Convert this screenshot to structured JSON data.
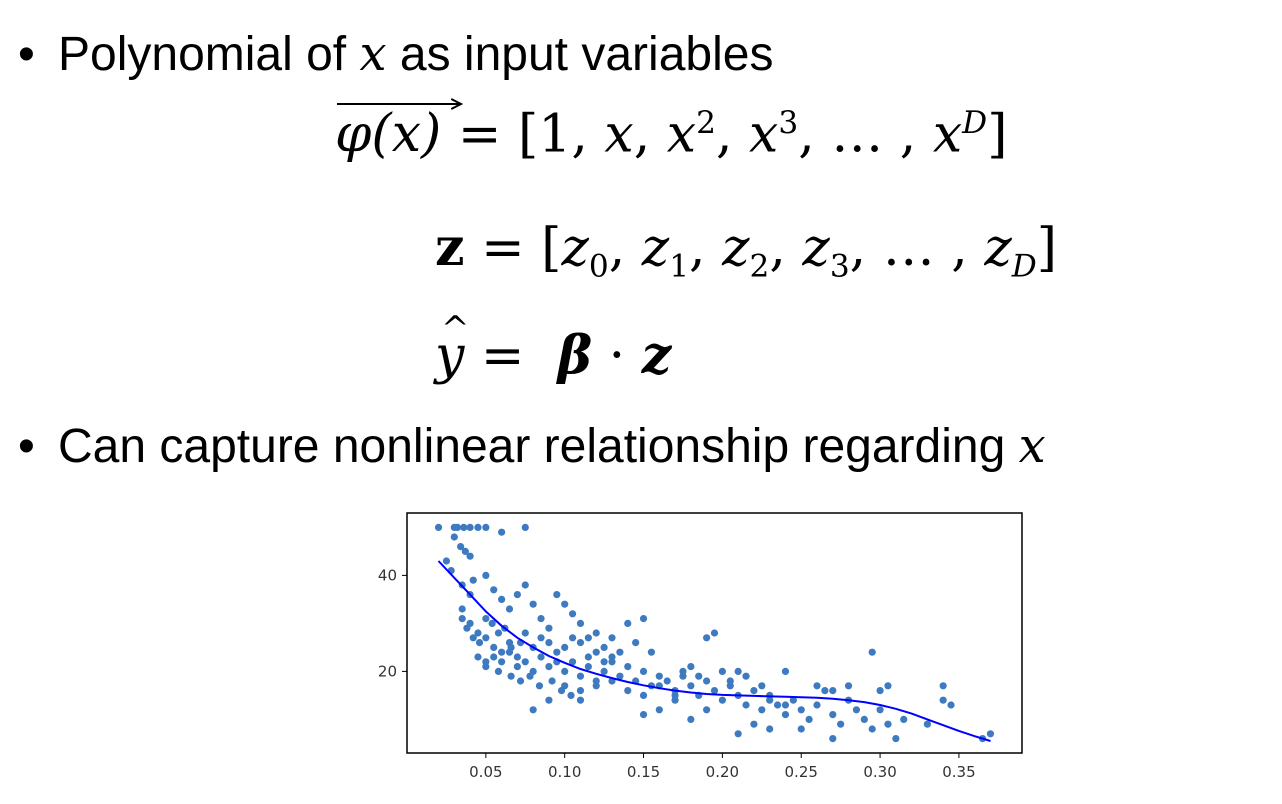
{
  "bullets": [
    {
      "text": "Polynomial of ",
      "var": "x",
      "tail": " as input variables"
    },
    {
      "text": "Can capture nonlinear relationship regarding ",
      "var": "x",
      "tail": ""
    }
  ],
  "bullet_symbol": "•",
  "equations": {
    "phi": {
      "lhs": "φ(x)",
      "equals": "=",
      "rhs_open": "[1, ",
      "x1": "x",
      "sep": ", ",
      "x2": "x",
      "p2": "2",
      "x3": "x",
      "p3": "3",
      "ell": ", … , ",
      "xd": "x",
      "pd": "D",
      "rhs_close": "]"
    },
    "z": {
      "lhs": "z",
      "equals": "=",
      "open": "[",
      "items": [
        "z",
        "0",
        "z",
        "1",
        "z",
        "2",
        "z",
        "3"
      ],
      "ell": ", … , ",
      "zd": "z",
      "zd_sub": "D",
      "close": "]"
    },
    "y": {
      "lhs": "y",
      "equals": "=",
      "beta": "β",
      "dot": "·",
      "z": "z"
    }
  },
  "chart_data": {
    "type": "scatter",
    "title": "",
    "xlabel": "",
    "ylabel": "",
    "xlim": [
      0.0,
      0.39
    ],
    "ylim": [
      3,
      53
    ],
    "xticks": [
      "0.05",
      "0.10",
      "0.15",
      "0.20",
      "0.25",
      "0.30",
      "0.35"
    ],
    "xtick_values": [
      0.05,
      0.1,
      0.15,
      0.2,
      0.25,
      0.3,
      0.35
    ],
    "yticks": [
      "20",
      "40"
    ],
    "ytick_values": [
      20,
      40
    ],
    "grid": false,
    "point_color": "#3d7abf",
    "line_color": "#0000ff",
    "points": [
      [
        0.02,
        50
      ],
      [
        0.03,
        50
      ],
      [
        0.032,
        50
      ],
      [
        0.036,
        50
      ],
      [
        0.04,
        50
      ],
      [
        0.045,
        50
      ],
      [
        0.05,
        50
      ],
      [
        0.06,
        49
      ],
      [
        0.075,
        50
      ],
      [
        0.03,
        48
      ],
      [
        0.034,
        46
      ],
      [
        0.04,
        44
      ],
      [
        0.037,
        45
      ],
      [
        0.025,
        43
      ],
      [
        0.028,
        41
      ],
      [
        0.035,
        38
      ],
      [
        0.04,
        36
      ],
      [
        0.042,
        39
      ],
      [
        0.05,
        40
      ],
      [
        0.055,
        37
      ],
      [
        0.06,
        35
      ],
      [
        0.065,
        33
      ],
      [
        0.07,
        36
      ],
      [
        0.075,
        38
      ],
      [
        0.08,
        34
      ],
      [
        0.085,
        31
      ],
      [
        0.09,
        29
      ],
      [
        0.095,
        36
      ],
      [
        0.1,
        34
      ],
      [
        0.105,
        32
      ],
      [
        0.11,
        30
      ],
      [
        0.115,
        27
      ],
      [
        0.12,
        28
      ],
      [
        0.125,
        25
      ],
      [
        0.13,
        27
      ],
      [
        0.135,
        24
      ],
      [
        0.14,
        30
      ],
      [
        0.145,
        26
      ],
      [
        0.15,
        31
      ],
      [
        0.155,
        24
      ],
      [
        0.035,
        33
      ],
      [
        0.04,
        30
      ],
      [
        0.045,
        28
      ],
      [
        0.05,
        27
      ],
      [
        0.055,
        25
      ],
      [
        0.06,
        24
      ],
      [
        0.065,
        26
      ],
      [
        0.07,
        23
      ],
      [
        0.075,
        28
      ],
      [
        0.08,
        25
      ],
      [
        0.045,
        23
      ],
      [
        0.05,
        22
      ],
      [
        0.055,
        23
      ],
      [
        0.06,
        22
      ],
      [
        0.065,
        24
      ],
      [
        0.07,
        21
      ],
      [
        0.075,
        22
      ],
      [
        0.08,
        20
      ],
      [
        0.085,
        23
      ],
      [
        0.09,
        21
      ],
      [
        0.095,
        22
      ],
      [
        0.1,
        20
      ],
      [
        0.105,
        22
      ],
      [
        0.11,
        19
      ],
      [
        0.115,
        21
      ],
      [
        0.12,
        18
      ],
      [
        0.125,
        20
      ],
      [
        0.13,
        22
      ],
      [
        0.135,
        19
      ],
      [
        0.14,
        21
      ],
      [
        0.145,
        18
      ],
      [
        0.15,
        20
      ],
      [
        0.155,
        17
      ],
      [
        0.16,
        19
      ],
      [
        0.165,
        18
      ],
      [
        0.17,
        16
      ],
      [
        0.175,
        19
      ],
      [
        0.18,
        17
      ],
      [
        0.185,
        15
      ],
      [
        0.19,
        18
      ],
      [
        0.195,
        16
      ],
      [
        0.2,
        14
      ],
      [
        0.205,
        17
      ],
      [
        0.21,
        15
      ],
      [
        0.215,
        13
      ],
      [
        0.22,
        16
      ],
      [
        0.225,
        12
      ],
      [
        0.23,
        14
      ],
      [
        0.235,
        13
      ],
      [
        0.24,
        11
      ],
      [
        0.245,
        14
      ],
      [
        0.25,
        12
      ],
      [
        0.255,
        10
      ],
      [
        0.26,
        13
      ],
      [
        0.265,
        16
      ],
      [
        0.27,
        11
      ],
      [
        0.275,
        9
      ],
      [
        0.28,
        14
      ],
      [
        0.285,
        12
      ],
      [
        0.29,
        10
      ],
      [
        0.295,
        8
      ],
      [
        0.3,
        12
      ],
      [
        0.305,
        9
      ],
      [
        0.31,
        6
      ],
      [
        0.315,
        10
      ],
      [
        0.28,
        17
      ],
      [
        0.27,
        16
      ],
      [
        0.3,
        16
      ],
      [
        0.305,
        17
      ],
      [
        0.33,
        9
      ],
      [
        0.34,
        14
      ],
      [
        0.345,
        13
      ],
      [
        0.34,
        17
      ],
      [
        0.365,
        6
      ],
      [
        0.37,
        7
      ],
      [
        0.24,
        20
      ],
      [
        0.26,
        17
      ],
      [
        0.295,
        24
      ],
      [
        0.19,
        27
      ],
      [
        0.195,
        28
      ],
      [
        0.25,
        8
      ],
      [
        0.27,
        6
      ],
      [
        0.23,
        8
      ],
      [
        0.21,
        7
      ],
      [
        0.22,
        9
      ],
      [
        0.18,
        10
      ],
      [
        0.16,
        12
      ],
      [
        0.15,
        11
      ],
      [
        0.17,
        14
      ],
      [
        0.19,
        12
      ],
      [
        0.08,
        12
      ],
      [
        0.09,
        14
      ],
      [
        0.1,
        17
      ],
      [
        0.11,
        16
      ],
      [
        0.12,
        17
      ],
      [
        0.13,
        18
      ],
      [
        0.14,
        16
      ],
      [
        0.15,
        15
      ],
      [
        0.16,
        17
      ],
      [
        0.17,
        15
      ],
      [
        0.085,
        27
      ],
      [
        0.09,
        26
      ],
      [
        0.095,
        24
      ],
      [
        0.1,
        25
      ],
      [
        0.105,
        27
      ],
      [
        0.11,
        26
      ],
      [
        0.115,
        23
      ],
      [
        0.12,
        24
      ],
      [
        0.125,
        22
      ],
      [
        0.13,
        23
      ],
      [
        0.035,
        31
      ],
      [
        0.038,
        29
      ],
      [
        0.042,
        27
      ],
      [
        0.046,
        26
      ],
      [
        0.05,
        31
      ],
      [
        0.054,
        30
      ],
      [
        0.058,
        28
      ],
      [
        0.062,
        29
      ],
      [
        0.066,
        25
      ],
      [
        0.072,
        26
      ],
      [
        0.05,
        21
      ],
      [
        0.058,
        20
      ],
      [
        0.066,
        19
      ],
      [
        0.072,
        18
      ],
      [
        0.078,
        19
      ],
      [
        0.084,
        17
      ],
      [
        0.092,
        18
      ],
      [
        0.098,
        16
      ],
      [
        0.104,
        15
      ],
      [
        0.11,
        14
      ],
      [
        0.175,
        20
      ],
      [
        0.18,
        21
      ],
      [
        0.185,
        19
      ],
      [
        0.2,
        20
      ],
      [
        0.205,
        18
      ],
      [
        0.21,
        20
      ],
      [
        0.215,
        19
      ],
      [
        0.225,
        17
      ],
      [
        0.23,
        15
      ],
      [
        0.24,
        13
      ]
    ],
    "curve": [
      [
        0.02,
        43
      ],
      [
        0.03,
        39.5
      ],
      [
        0.04,
        36
      ],
      [
        0.05,
        32.5
      ],
      [
        0.06,
        29.5
      ],
      [
        0.07,
        27
      ],
      [
        0.08,
        25
      ],
      [
        0.09,
        23.2
      ],
      [
        0.1,
        21.8
      ],
      [
        0.11,
        20.5
      ],
      [
        0.12,
        19.5
      ],
      [
        0.13,
        18.6
      ],
      [
        0.14,
        17.8
      ],
      [
        0.15,
        17.1
      ],
      [
        0.16,
        16.5
      ],
      [
        0.17,
        16
      ],
      [
        0.18,
        15.6
      ],
      [
        0.19,
        15.3
      ],
      [
        0.2,
        15.1
      ],
      [
        0.21,
        15
      ],
      [
        0.22,
        14.9
      ],
      [
        0.23,
        14.8
      ],
      [
        0.24,
        14.7
      ],
      [
        0.25,
        14.6
      ],
      [
        0.26,
        14.5
      ],
      [
        0.27,
        14.3
      ],
      [
        0.28,
        14
      ],
      [
        0.29,
        13.6
      ],
      [
        0.3,
        13
      ],
      [
        0.31,
        12.2
      ],
      [
        0.32,
        11.2
      ],
      [
        0.33,
        10
      ],
      [
        0.34,
        8.8
      ],
      [
        0.35,
        7.6
      ],
      [
        0.36,
        6.5
      ],
      [
        0.37,
        5.5
      ]
    ]
  }
}
